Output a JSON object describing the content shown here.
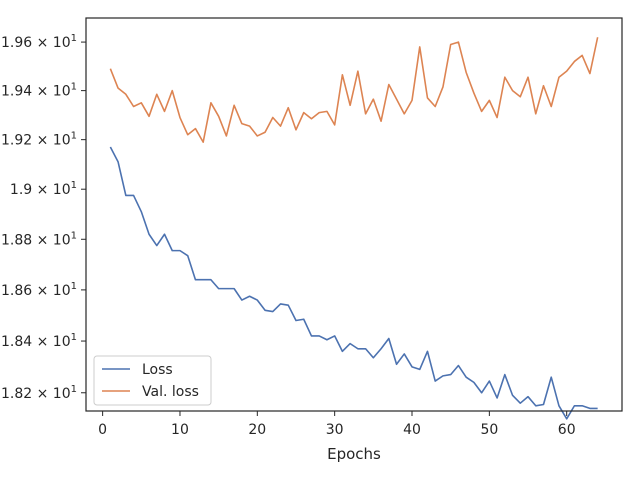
{
  "chart_data": {
    "type": "line",
    "title": "",
    "xlabel": "Epochs",
    "ylabel": "",
    "y_scale": "log",
    "xlim": [
      -2.15,
      67.15
    ],
    "ylim": [
      18.13,
      19.7
    ],
    "grid": false,
    "legend_position": "lower-left",
    "x_ticks": [
      0,
      10,
      20,
      30,
      40,
      50,
      60
    ],
    "x_tick_labels": [
      "0",
      "10",
      "20",
      "30",
      "40",
      "50",
      "60"
    ],
    "y_ticks": [
      18.2,
      18.4,
      18.6,
      18.8,
      19.0,
      19.2,
      19.4,
      19.6
    ],
    "y_tick_labels": [
      "1.82 × 10^1",
      "1.84 × 10^1",
      "1.86 × 10^1",
      "1.88 × 10^1",
      "1.9 × 10^1",
      "1.92 × 10^1",
      "1.94 × 10^1",
      "1.96 × 10^1"
    ],
    "y_tick_parts": [
      {
        "mant": "1.82",
        "exp": "1"
      },
      {
        "mant": "1.84",
        "exp": "1"
      },
      {
        "mant": "1.86",
        "exp": "1"
      },
      {
        "mant": "1.88",
        "exp": "1"
      },
      {
        "mant": "1.9",
        "exp": "1"
      },
      {
        "mant": "1.92",
        "exp": "1"
      },
      {
        "mant": "1.94",
        "exp": "1"
      },
      {
        "mant": "1.96",
        "exp": "1"
      }
    ],
    "x": [
      1,
      2,
      3,
      4,
      5,
      6,
      7,
      8,
      9,
      10,
      11,
      12,
      13,
      14,
      15,
      16,
      17,
      18,
      19,
      20,
      21,
      22,
      23,
      24,
      25,
      26,
      27,
      28,
      29,
      30,
      31,
      32,
      33,
      34,
      35,
      36,
      37,
      38,
      39,
      40,
      41,
      42,
      43,
      44,
      45,
      46,
      47,
      48,
      49,
      50,
      51,
      52,
      53,
      54,
      55,
      56,
      57,
      58,
      59,
      60,
      61,
      62,
      63,
      64
    ],
    "series": [
      {
        "name": "Loss",
        "color": "#4c72b0",
        "values": [
          19.17,
          19.11,
          18.975,
          18.975,
          18.91,
          18.82,
          18.775,
          18.82,
          18.755,
          18.755,
          18.735,
          18.64,
          18.64,
          18.64,
          18.605,
          18.605,
          18.605,
          18.56,
          18.575,
          18.56,
          18.52,
          18.515,
          18.545,
          18.54,
          18.48,
          18.485,
          18.42,
          18.42,
          18.405,
          18.42,
          18.36,
          18.39,
          18.37,
          18.37,
          18.335,
          18.37,
          18.41,
          18.31,
          18.35,
          18.3,
          18.29,
          18.36,
          18.245,
          18.265,
          18.27,
          18.305,
          18.26,
          18.24,
          18.2,
          18.245,
          18.18,
          18.27,
          18.19,
          18.16,
          18.185,
          18.15,
          18.155,
          18.26,
          18.15,
          18.1,
          18.15,
          18.15,
          18.14,
          18.14
        ]
      },
      {
        "name": "Val. loss",
        "color": "#dd8452",
        "values": [
          19.49,
          19.41,
          19.385,
          19.335,
          19.35,
          19.295,
          19.385,
          19.315,
          19.4,
          19.29,
          19.22,
          19.245,
          19.19,
          19.35,
          19.295,
          19.215,
          19.34,
          19.265,
          19.255,
          19.215,
          19.23,
          19.29,
          19.255,
          19.33,
          19.24,
          19.31,
          19.285,
          19.31,
          19.315,
          19.26,
          19.465,
          19.34,
          19.48,
          19.305,
          19.365,
          19.275,
          19.425,
          19.365,
          19.305,
          19.36,
          19.58,
          19.37,
          19.335,
          19.415,
          19.59,
          19.6,
          19.475,
          19.39,
          19.315,
          19.36,
          19.29,
          19.455,
          19.4,
          19.375,
          19.455,
          19.305,
          19.42,
          19.335,
          19.455,
          19.48,
          19.52,
          19.545,
          19.47,
          19.62
        ]
      }
    ]
  }
}
